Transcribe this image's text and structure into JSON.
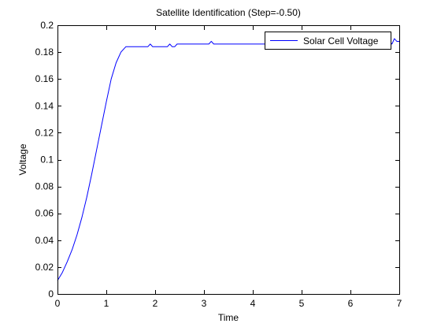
{
  "chart_data": {
    "type": "line",
    "title": "Satellite Identification (Step=-0.50)",
    "xlabel": "Time",
    "ylabel": "Voltage",
    "xlim": [
      0,
      7
    ],
    "ylim": [
      0,
      0.2
    ],
    "x_ticks": [
      0,
      1,
      2,
      3,
      4,
      5,
      6,
      7
    ],
    "x_tick_labels": [
      "0",
      "1",
      "2",
      "3",
      "4",
      "5",
      "6",
      "7"
    ],
    "y_ticks": [
      0,
      0.02,
      0.04,
      0.06,
      0.08,
      0.1,
      0.12,
      0.14,
      0.16,
      0.18,
      0.2
    ],
    "y_tick_labels": [
      "0",
      "0.02",
      "0.04",
      "0.06",
      "0.08",
      "0.1",
      "0.12",
      "0.14",
      "0.16",
      "0.18",
      "0.2"
    ],
    "grid": false,
    "legend_position": "top-right",
    "series": [
      {
        "name": "Solar Cell Voltage",
        "color": "#0000ff",
        "x": [
          0,
          0.1,
          0.2,
          0.3,
          0.4,
          0.5,
          0.6,
          0.7,
          0.8,
          0.9,
          1.0,
          1.1,
          1.2,
          1.3,
          1.4,
          1.5,
          1.6,
          1.7,
          1.8,
          1.85,
          1.9,
          1.95,
          2.0,
          2.1,
          2.2,
          2.25,
          2.3,
          2.35,
          2.4,
          2.45,
          2.5,
          2.7,
          3.0,
          3.1,
          3.15,
          3.2,
          3.3,
          3.5,
          4.0,
          4.5,
          5.0,
          5.5,
          6.0,
          6.5,
          6.8,
          6.85,
          6.9,
          6.95,
          7.0
        ],
        "y": [
          0.01,
          0.016,
          0.024,
          0.033,
          0.044,
          0.057,
          0.072,
          0.089,
          0.107,
          0.125,
          0.143,
          0.16,
          0.172,
          0.18,
          0.184,
          0.184,
          0.184,
          0.184,
          0.184,
          0.184,
          0.186,
          0.184,
          0.184,
          0.184,
          0.184,
          0.184,
          0.186,
          0.184,
          0.184,
          0.186,
          0.186,
          0.186,
          0.186,
          0.186,
          0.188,
          0.186,
          0.186,
          0.186,
          0.186,
          0.186,
          0.186,
          0.186,
          0.186,
          0.186,
          0.188,
          0.186,
          0.19,
          0.188,
          0.188
        ]
      }
    ]
  }
}
